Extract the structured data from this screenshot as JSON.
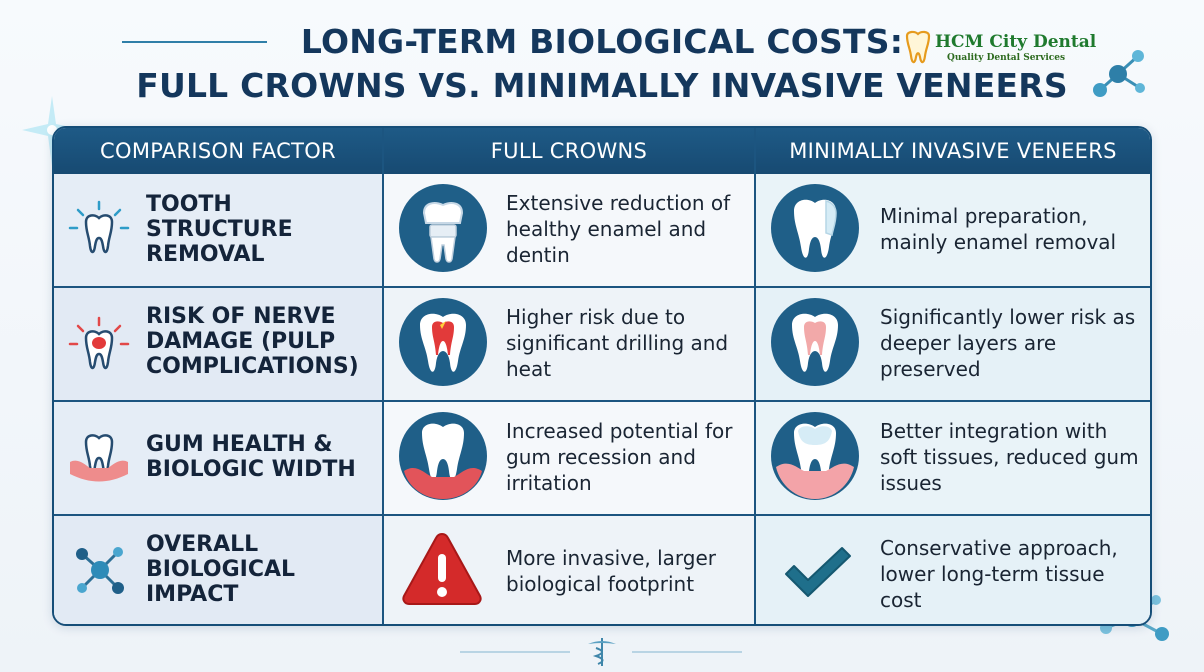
{
  "title": {
    "line1": "LONG-TERM BIOLOGICAL COSTS:",
    "line2": "FULL CROWNS VS. MINIMALLY INVASIVE VENEERS"
  },
  "logo": {
    "name": "HCM City Dental",
    "tagline": "Quality Dental Services"
  },
  "table": {
    "headers": [
      "COMPARISON FACTOR",
      "FULL CROWNS",
      "MINIMALLY INVASIVE VENEERS"
    ],
    "rows": [
      {
        "factor": "TOOTH STRUCTURE REMOVAL",
        "factor_icon": "tooth-sparkle-icon",
        "crowns": "Extensive reduction of healthy enamel and dentin",
        "crowns_icon": "crown-prep-icon",
        "veneers": "Minimal preparation, mainly enamel removal",
        "veneers_icon": "veneer-tooth-icon"
      },
      {
        "factor": "RISK OF NERVE DAMAGE (PULP COMPLICATIONS)",
        "factor_icon": "nerve-pain-icon",
        "crowns": "Higher risk due to significant drilling and heat",
        "crowns_icon": "inflamed-pulp-icon",
        "veneers": "Significantly lower risk as deeper layers are preserved",
        "veneers_icon": "healthy-pulp-icon"
      },
      {
        "factor": "GUM HEALTH & BIOLOGIC WIDTH",
        "factor_icon": "tooth-gum-icon",
        "crowns": "Increased potential for gum recession and irritation",
        "crowns_icon": "gum-recession-icon",
        "veneers": "Better integration with soft tissues, reduced gum issues",
        "veneers_icon": "healthy-gum-icon"
      },
      {
        "factor": "OVERALL BIOLOGICAL IMPACT",
        "factor_icon": "molecule-icon",
        "crowns": "More invasive, larger biological footprint",
        "crowns_icon": "warning-icon",
        "veneers": "Conservative approach, lower long-term tissue cost",
        "veneers_icon": "checkmark-icon"
      }
    ]
  },
  "colors": {
    "navy": "#164e78",
    "title": "#14375c",
    "teal": "#2e8bb8",
    "warning_red": "#d42a2a",
    "check_teal": "#1f6f8b",
    "logo_green": "#1f7a2e"
  }
}
